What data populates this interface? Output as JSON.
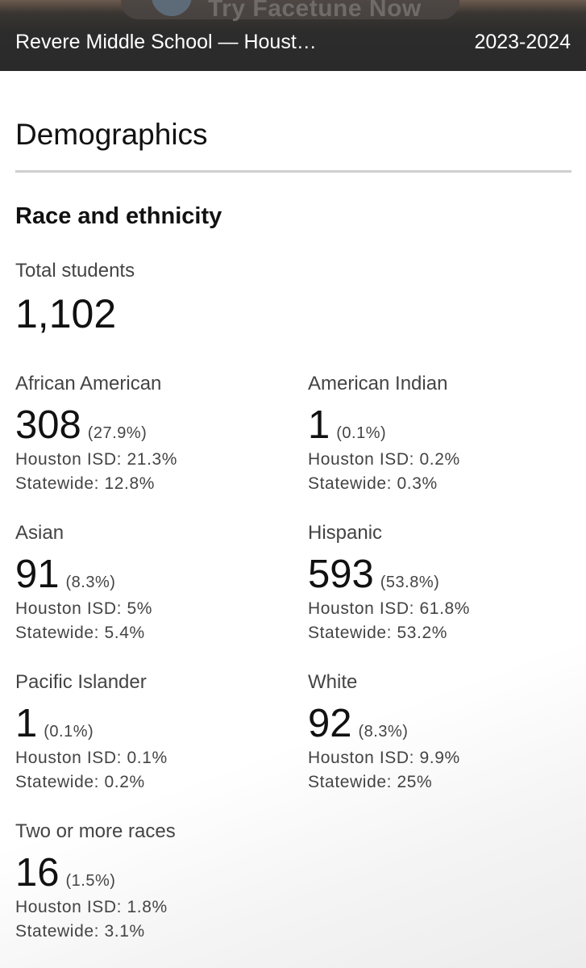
{
  "banner": {
    "ad_text": "Try Facetune Now",
    "title": "Revere Middle School — Houst…",
    "year": "2023-2024"
  },
  "section": {
    "heading": "Demographics",
    "subheading": "Race and ethnicity"
  },
  "total": {
    "label": "Total students",
    "value": "1,102"
  },
  "groups": [
    {
      "label": "African American",
      "count": "308",
      "pct": "(27.9%)",
      "district": "Houston ISD: 21.3%",
      "state": "Statewide: 12.8%"
    },
    {
      "label": "American Indian",
      "count": "1",
      "pct": "(0.1%)",
      "district": "Houston ISD: 0.2%",
      "state": "Statewide: 0.3%"
    },
    {
      "label": "Asian",
      "count": "91",
      "pct": "(8.3%)",
      "district": "Houston ISD: 5%",
      "state": "Statewide: 5.4%"
    },
    {
      "label": "Hispanic",
      "count": "593",
      "pct": "(53.8%)",
      "district": "Houston ISD: 61.8%",
      "state": "Statewide: 53.2%"
    },
    {
      "label": "Pacific Islander",
      "count": "1",
      "pct": "(0.1%)",
      "district": "Houston ISD: 0.1%",
      "state": "Statewide: 0.2%"
    },
    {
      "label": "White",
      "count": "92",
      "pct": "(8.3%)",
      "district": "Houston ISD: 9.9%",
      "state": "Statewide: 25%"
    },
    {
      "label": "Two or more races",
      "count": "16",
      "pct": "(1.5%)",
      "district": "Houston ISD: 1.8%",
      "state": "Statewide: 3.1%"
    }
  ]
}
